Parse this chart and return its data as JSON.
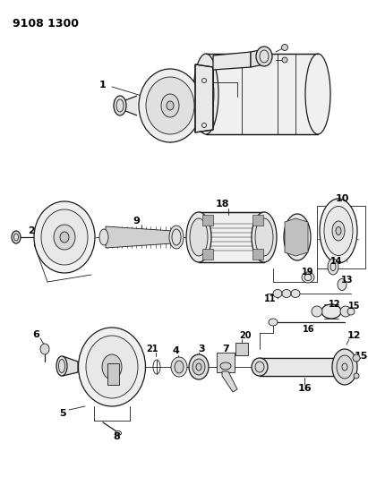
{
  "title": "9108 1300",
  "background_color": "#ffffff",
  "line_color": "#1a1a1a",
  "text_color": "#000000",
  "fig_width": 4.11,
  "fig_height": 5.33,
  "dpi": 100
}
